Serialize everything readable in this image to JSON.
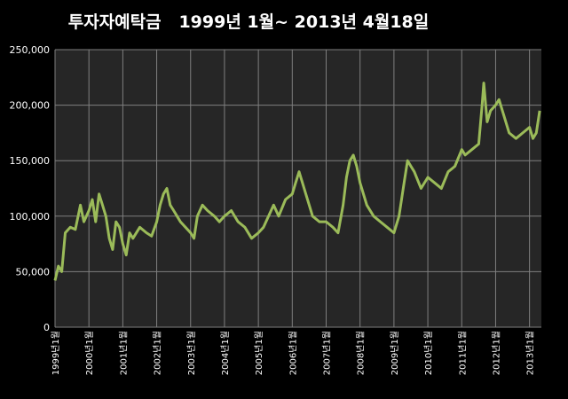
{
  "chart_data": {
    "type": "line",
    "title": "투자자예탁금   1999년 1월~ 2013년 4월18일",
    "xlabel": "",
    "ylabel": "",
    "ylim": [
      0,
      250000
    ],
    "yticks": [
      "0",
      "50,000",
      "100,000",
      "150,000",
      "200,000",
      "250,000"
    ],
    "x_tick_labels": [
      "1999년1월",
      "2000년1월",
      "2001년1월",
      "2002년1월",
      "2003년1월",
      "2004년1월",
      "2005년1월",
      "2006년1월",
      "2007년1월",
      "2008년1월",
      "2009년1월",
      "2010년1월",
      "2011년1월",
      "2012년1월",
      "2013년1월"
    ],
    "grid": true,
    "line_color": "#9bbb59",
    "plot_bg": "#262626",
    "series": [
      {
        "x": [
          1999.0,
          1999.1,
          1999.2,
          1999.3,
          1999.45,
          1999.6,
          1999.75,
          1999.85,
          2000.0,
          2000.1,
          2000.2,
          2000.3,
          2000.4,
          2000.5,
          2000.6,
          2000.7,
          2000.8,
          2000.9,
          2001.0,
          2001.1,
          2001.2,
          2001.3,
          2001.5,
          2001.7,
          2001.85,
          2002.0,
          2002.1,
          2002.2,
          2002.3,
          2002.4,
          2002.5,
          2002.6,
          2002.7,
          2002.85,
          2003.0,
          2003.1,
          2003.2,
          2003.35,
          2003.5,
          2003.7,
          2003.85,
          2004.0,
          2004.2,
          2004.4,
          2004.6,
          2004.8,
          2005.0,
          2005.15,
          2005.3,
          2005.45,
          2005.6,
          2005.8,
          2006.0,
          2006.1,
          2006.2,
          2006.3,
          2006.4,
          2006.5,
          2006.6,
          2006.8,
          2007.0,
          2007.2,
          2007.35,
          2007.5,
          2007.6,
          2007.7,
          2007.8,
          2007.9,
          2008.0,
          2008.2,
          2008.4,
          2008.6,
          2008.8,
          2009.0,
          2009.15,
          2009.3,
          2009.4,
          2009.5,
          2009.6,
          2009.8,
          2010.0,
          2010.2,
          2010.4,
          2010.6,
          2010.8,
          2011.0,
          2011.1,
          2011.3,
          2011.5,
          2011.6,
          2011.65,
          2011.75,
          2011.85,
          2012.0,
          2012.1,
          2012.2,
          2012.4,
          2012.6,
          2012.8,
          2013.0,
          2013.1,
          2013.2,
          2013.25,
          2013.3
        ],
        "values": [
          42000,
          55000,
          50000,
          85000,
          90000,
          88000,
          110000,
          95000,
          105000,
          115000,
          95000,
          120000,
          110000,
          100000,
          80000,
          70000,
          95000,
          90000,
          75000,
          65000,
          85000,
          80000,
          90000,
          85000,
          82000,
          95000,
          110000,
          120000,
          125000,
          110000,
          105000,
          100000,
          95000,
          90000,
          85000,
          80000,
          100000,
          110000,
          105000,
          100000,
          95000,
          100000,
          105000,
          95000,
          90000,
          80000,
          85000,
          90000,
          100000,
          110000,
          100000,
          115000,
          120000,
          130000,
          140000,
          130000,
          120000,
          110000,
          100000,
          95000,
          95000,
          90000,
          85000,
          110000,
          135000,
          150000,
          155000,
          145000,
          130000,
          110000,
          100000,
          95000,
          90000,
          85000,
          100000,
          130000,
          150000,
          145000,
          140000,
          125000,
          135000,
          130000,
          125000,
          140000,
          145000,
          160000,
          155000,
          160000,
          165000,
          200000,
          220000,
          185000,
          195000,
          200000,
          205000,
          195000,
          175000,
          170000,
          175000,
          180000,
          170000,
          175000,
          185000,
          195000
        ]
      }
    ]
  }
}
